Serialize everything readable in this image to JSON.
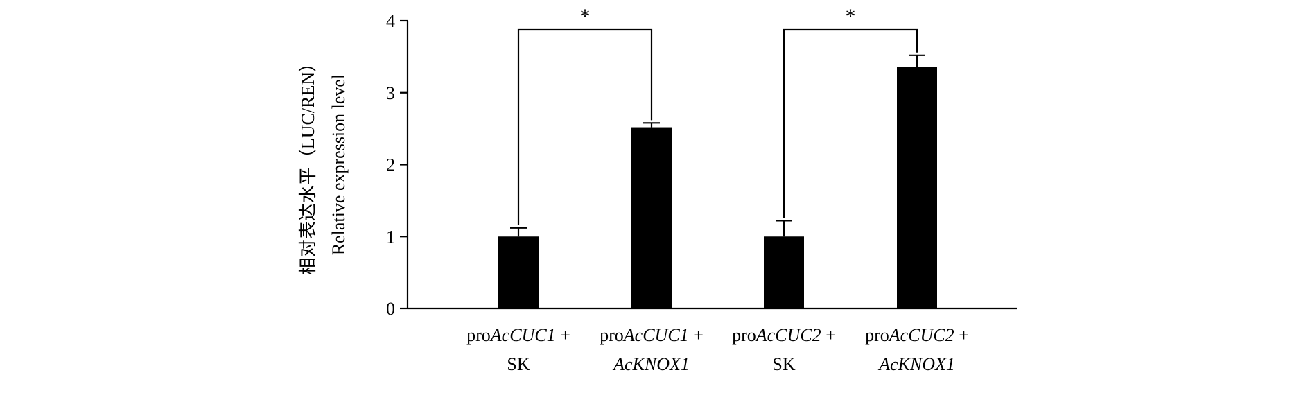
{
  "chart_data": {
    "type": "bar",
    "ylabel_cn": "相对表达水平（LUC/REN）",
    "ylabel_en": "Relative expression level",
    "ylim": [
      0,
      4
    ],
    "yticks": [
      "0",
      "1",
      "2",
      "3",
      "4"
    ],
    "categories": [
      {
        "line1_prefix": "pro",
        "line1_italic": "AcCUC1",
        "line1_suffix": " +",
        "line2": "SK",
        "line2_italic": false
      },
      {
        "line1_prefix": "pro",
        "line1_italic": "AcCUC1",
        "line1_suffix": " +",
        "line2": "AcKNOX1",
        "line2_italic": true
      },
      {
        "line1_prefix": "pro",
        "line1_italic": "AcCUC2",
        "line1_suffix": " +",
        "line2": "SK",
        "line2_italic": false
      },
      {
        "line1_prefix": "pro",
        "line1_italic": "AcCUC2",
        "line1_suffix": "  +",
        "line2": "AcKNOX1",
        "line2_italic": true
      }
    ],
    "values": [
      1.0,
      2.52,
      1.0,
      3.36
    ],
    "errors": [
      0.12,
      0.06,
      0.22,
      0.16
    ],
    "significance": [
      {
        "from": 0,
        "to": 1,
        "label": "*"
      },
      {
        "from": 2,
        "to": 3,
        "label": "*"
      }
    ],
    "bar_color": "#000000",
    "grid": false,
    "legend": "none"
  }
}
